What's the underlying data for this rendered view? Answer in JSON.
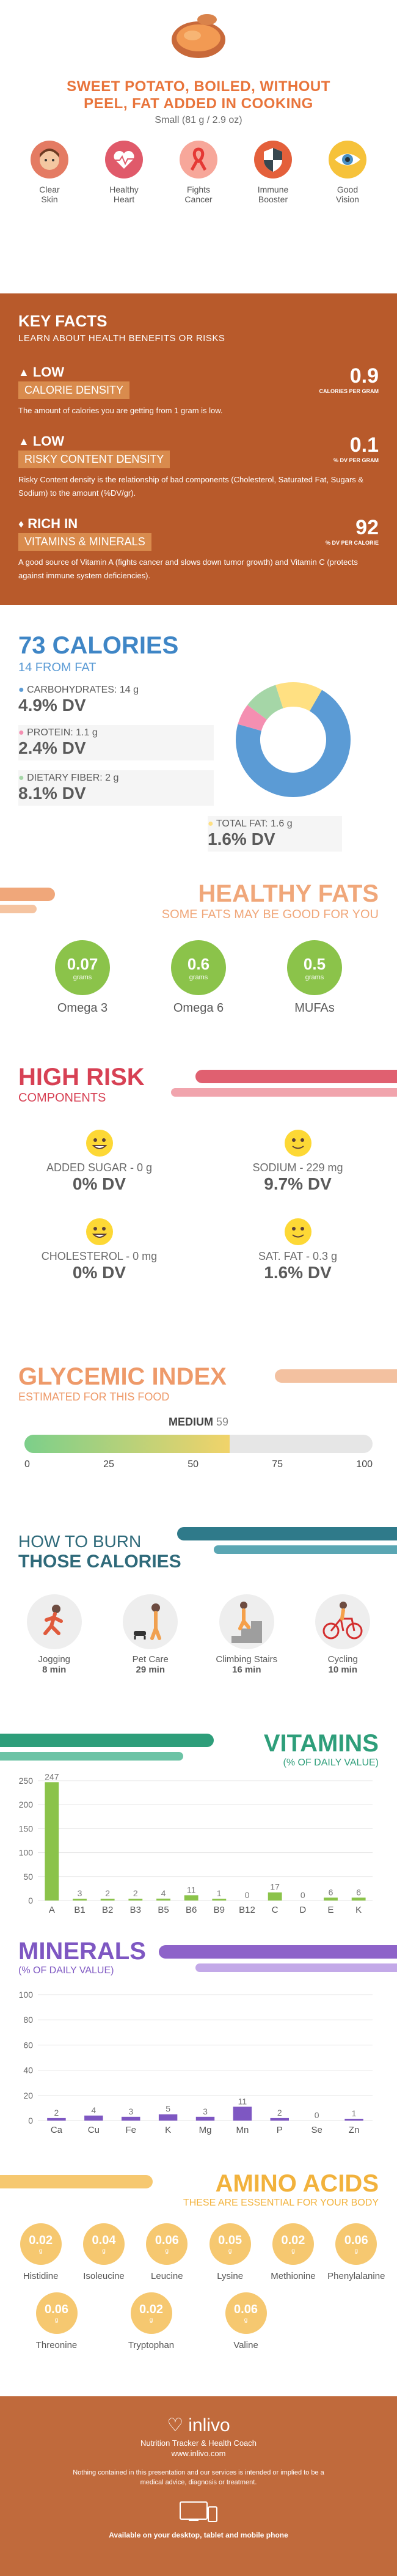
{
  "header": {
    "title_line1": "SWEET POTATO, BOILED, WITHOUT",
    "title_line2": "PEEL, FAT ADDED IN COOKING",
    "serving": "Small (81 g / 2.9 oz)"
  },
  "benefits": [
    {
      "label1": "Clear",
      "label2": "Skin",
      "color": "#e47b63",
      "icon": "face-icon"
    },
    {
      "label1": "Healthy",
      "label2": "Heart",
      "color": "#e05a6a",
      "icon": "heart-pulse-icon"
    },
    {
      "label1": "Fights",
      "label2": "Cancer",
      "color": "#f7a79a",
      "icon": "ribbon-icon"
    },
    {
      "label1": "Immune",
      "label2": "Booster",
      "color": "#e4603b",
      "icon": "shield-icon"
    },
    {
      "label1": "Good",
      "label2": "Vision",
      "color": "#f6c23a",
      "icon": "eye-icon"
    }
  ],
  "key_facts": {
    "heading": "KEY FACTS",
    "subheading": "LEARN ABOUT HEALTH BENEFITS OR RISKS",
    "items": [
      {
        "level": "LOW",
        "name": "CALORIE DENSITY",
        "value": "0.9",
        "unit": "CALORIES PER GRAM",
        "desc": "The amount of calories you are getting from 1 gram is low."
      },
      {
        "level": "LOW",
        "name": "RISKY CONTENT DENSITY",
        "value": "0.1",
        "unit": "% DV PER GRAM",
        "desc": "Risky Content density is the relationship of bad components (Cholesterol, Saturated Fat, Sugars & Sodium) to the amount (%DV/gr)."
      },
      {
        "level": "RICH IN",
        "name": "VITAMINS & MINERALS",
        "value": "92",
        "unit": "% DV PER CALORIE",
        "desc": "A good source of Vitamin A (fights cancer and slows down tumor growth) and Vitamin C (protects against immune system deficiencies)."
      }
    ]
  },
  "calories": {
    "title": "73 CALORIES",
    "from_fat": "14 FROM FAT",
    "carbs_label": "CARBOHYDRATES: 14 g",
    "carbs_dv": "4.9% DV",
    "protein_label": "PROTEIN: 1.1 g",
    "protein_dv": "2.4% DV",
    "fiber_label": "DIETARY FIBER: 2 g",
    "fiber_dv": "8.1% DV",
    "fat_label": "TOTAL FAT: 1.6 g",
    "fat_dv": "1.6% DV",
    "colors": {
      "carbs": "#5b9bd5",
      "protein": "#f48fb1",
      "fiber": "#a5d6a7",
      "fat": "#ffe082"
    }
  },
  "healthy_fats": {
    "title": "HEALTHY FATS",
    "subtitle": "SOME FATS MAY BE GOOD FOR YOU",
    "items": [
      {
        "value": "0.07",
        "unit": "grams",
        "label": "Omega 3"
      },
      {
        "value": "0.6",
        "unit": "grams",
        "label": "Omega 6"
      },
      {
        "value": "0.5",
        "unit": "grams",
        "label": "MUFAs"
      }
    ]
  },
  "high_risk": {
    "title": "HIGH RISK",
    "subtitle": "COMPONENTS",
    "items": [
      {
        "label": "ADDED SUGAR - 0 g",
        "dv": "0% DV"
      },
      {
        "label": "SODIUM - 229 mg",
        "dv": "9.7% DV"
      },
      {
        "label": "CHOLESTEROL - 0 mg",
        "dv": "0% DV"
      },
      {
        "label": "SAT. FAT - 0.3 g",
        "dv": "1.6% DV"
      }
    ]
  },
  "glycemic": {
    "title": "GLYCEMIC INDEX",
    "subtitle": "ESTIMATED FOR THIS FOOD",
    "level": "MEDIUM",
    "value": "59",
    "value_num": 59,
    "ticks": [
      "0",
      "25",
      "50",
      "75",
      "100"
    ]
  },
  "burn": {
    "title1": "HOW TO BURN",
    "title2": "THOSE CALORIES",
    "items": [
      {
        "label": "Jogging",
        "value": "8 min",
        "icon": "jogging-icon"
      },
      {
        "label": "Pet Care",
        "value": "29 min",
        "icon": "pet-care-icon"
      },
      {
        "label": "Climbing Stairs",
        "value": "16 min",
        "icon": "stairs-icon"
      },
      {
        "label": "Cycling",
        "value": "10 min",
        "icon": "cycling-icon"
      }
    ]
  },
  "chart_data": [
    {
      "type": "bar",
      "title": "VITAMINS",
      "subtitle": "(% OF DAILY VALUE)",
      "categories": [
        "A",
        "B1",
        "B2",
        "B3",
        "B5",
        "B6",
        "B9",
        "B12",
        "C",
        "D",
        "E",
        "K"
      ],
      "values": [
        247,
        3,
        2,
        2,
        4,
        11,
        1,
        0,
        17,
        0,
        6,
        6
      ],
      "yticks": [
        "0",
        "50",
        "100",
        "150",
        "200",
        "250"
      ],
      "ylim": [
        0,
        250
      ],
      "color": "#8bc34a"
    },
    {
      "type": "bar",
      "title": "MINERALS",
      "subtitle": "(% OF DAILY VALUE)",
      "categories": [
        "Ca",
        "Cu",
        "Fe",
        "K",
        "Mg",
        "Mn",
        "P",
        "Se",
        "Zn"
      ],
      "values": [
        2,
        4,
        3,
        5,
        3,
        11,
        2,
        0,
        1
      ],
      "yticks": [
        "0",
        "20",
        "40",
        "60",
        "80",
        "100"
      ],
      "ylim": [
        0,
        100
      ],
      "color": "#7e57c2"
    }
  ],
  "amino": {
    "title": "AMINO ACIDS",
    "subtitle": "THESE ARE ESSENTIAL FOR YOUR BODY",
    "items": [
      {
        "value": "0.02",
        "unit": "g",
        "label": "Histidine"
      },
      {
        "value": "0.04",
        "unit": "g",
        "label": "Isoleucine"
      },
      {
        "value": "0.06",
        "unit": "g",
        "label": "Leucine"
      },
      {
        "value": "0.05",
        "unit": "g",
        "label": "Lysine"
      },
      {
        "value": "0.02",
        "unit": "g",
        "label": "Methionine"
      },
      {
        "value": "0.06",
        "unit": "g",
        "label": "Phenylalanine"
      },
      {
        "value": "0.06",
        "unit": "g",
        "label": "Threonine"
      },
      {
        "value": "0.02",
        "unit": "g",
        "label": "Tryptophan"
      },
      {
        "value": "0.06",
        "unit": "g",
        "label": "Valine"
      }
    ]
  },
  "footer": {
    "brand": "inlivo",
    "tagline": "Nutrition Tracker & Health Coach",
    "url": "www.inlivo.com",
    "disclaimer": "Nothing contained in this presentation and our services is intended or implied to be a medical advice, diagnosis or treatment.",
    "platforms": "Available on your desktop, tablet and mobile phone"
  }
}
